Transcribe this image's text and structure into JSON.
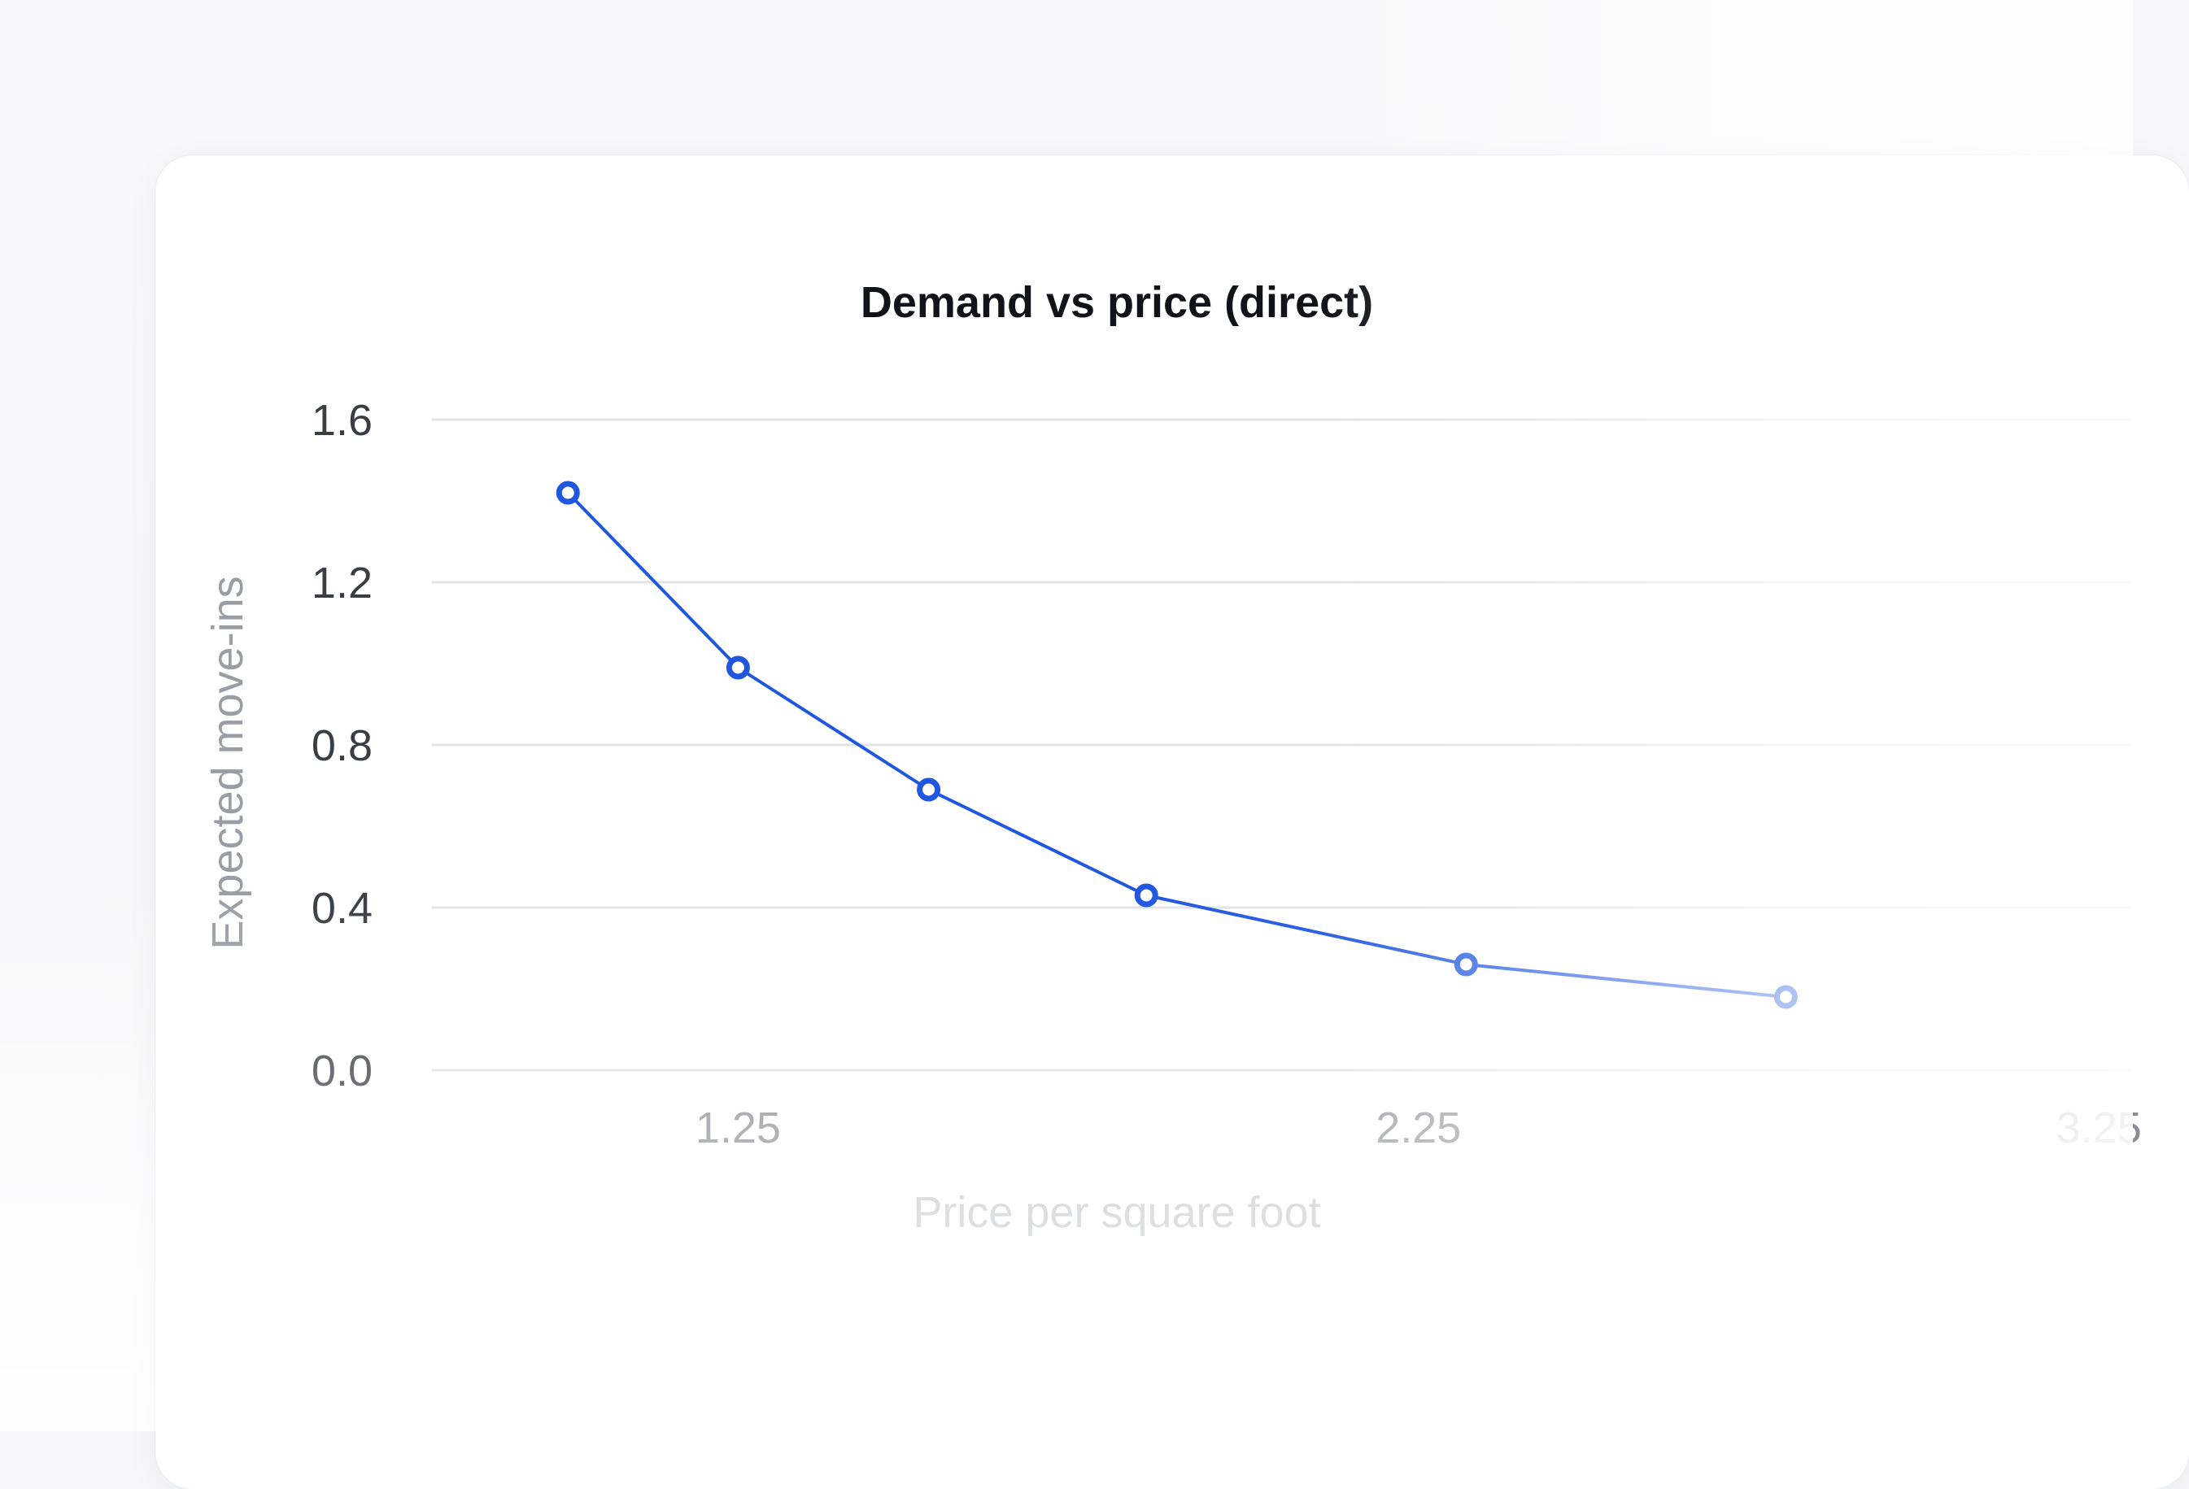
{
  "chart_data": {
    "type": "line",
    "title": "Demand vs price (direct)",
    "xlabel": "Price per square foot",
    "ylabel": "Expected move-ins",
    "xlim": [
      0.8,
      3.3
    ],
    "ylim": [
      0.0,
      1.6
    ],
    "x_ticks": [
      "1.25",
      "2.25",
      "3.25"
    ],
    "y_ticks": [
      "1.6",
      "1.2",
      "0.8",
      "0.4",
      "0.0"
    ],
    "grid": true,
    "legend": "none",
    "series": [
      {
        "x": [
          1.0,
          1.25,
          1.53,
          1.85,
          2.32,
          2.79
        ],
        "y": [
          1.42,
          0.99,
          0.69,
          0.43,
          0.26,
          0.18
        ]
      }
    ],
    "colors": {
      "line": "#1f57e0",
      "grid": "#e2e3e6"
    }
  }
}
